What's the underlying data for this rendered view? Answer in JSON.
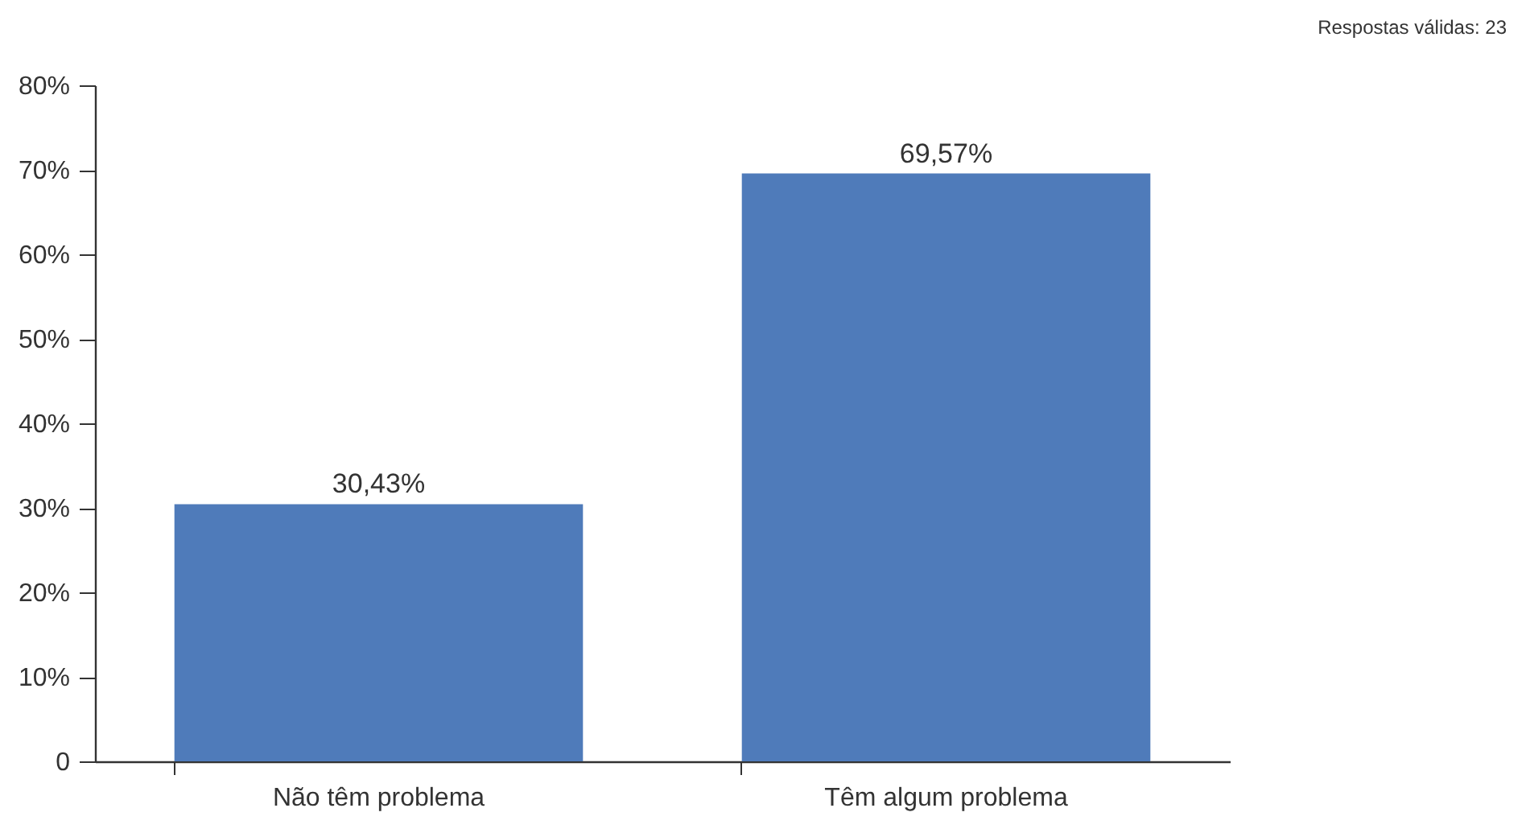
{
  "chart_data": {
    "type": "bar",
    "categories": [
      "Não têm problema",
      "Têm algum problema"
    ],
    "values": [
      30.43,
      69.57
    ],
    "color": "#4f7bba",
    "value_labels": [
      "30,43%",
      "69,57%"
    ],
    "ylim": [
      0,
      80
    ],
    "yticks": [
      {
        "value": 0,
        "label": "0"
      },
      {
        "value": 10,
        "label": "10%"
      },
      {
        "value": 20,
        "label": "20%"
      },
      {
        "value": 30,
        "label": "30%"
      },
      {
        "value": 40,
        "label": "40%"
      },
      {
        "value": 50,
        "label": "50%"
      },
      {
        "value": 60,
        "label": "60%"
      },
      {
        "value": 70,
        "label": "70%"
      },
      {
        "value": 80,
        "label": "80%"
      }
    ],
    "grid": false,
    "annotations": [
      "Respostas válidas: 23"
    ]
  }
}
